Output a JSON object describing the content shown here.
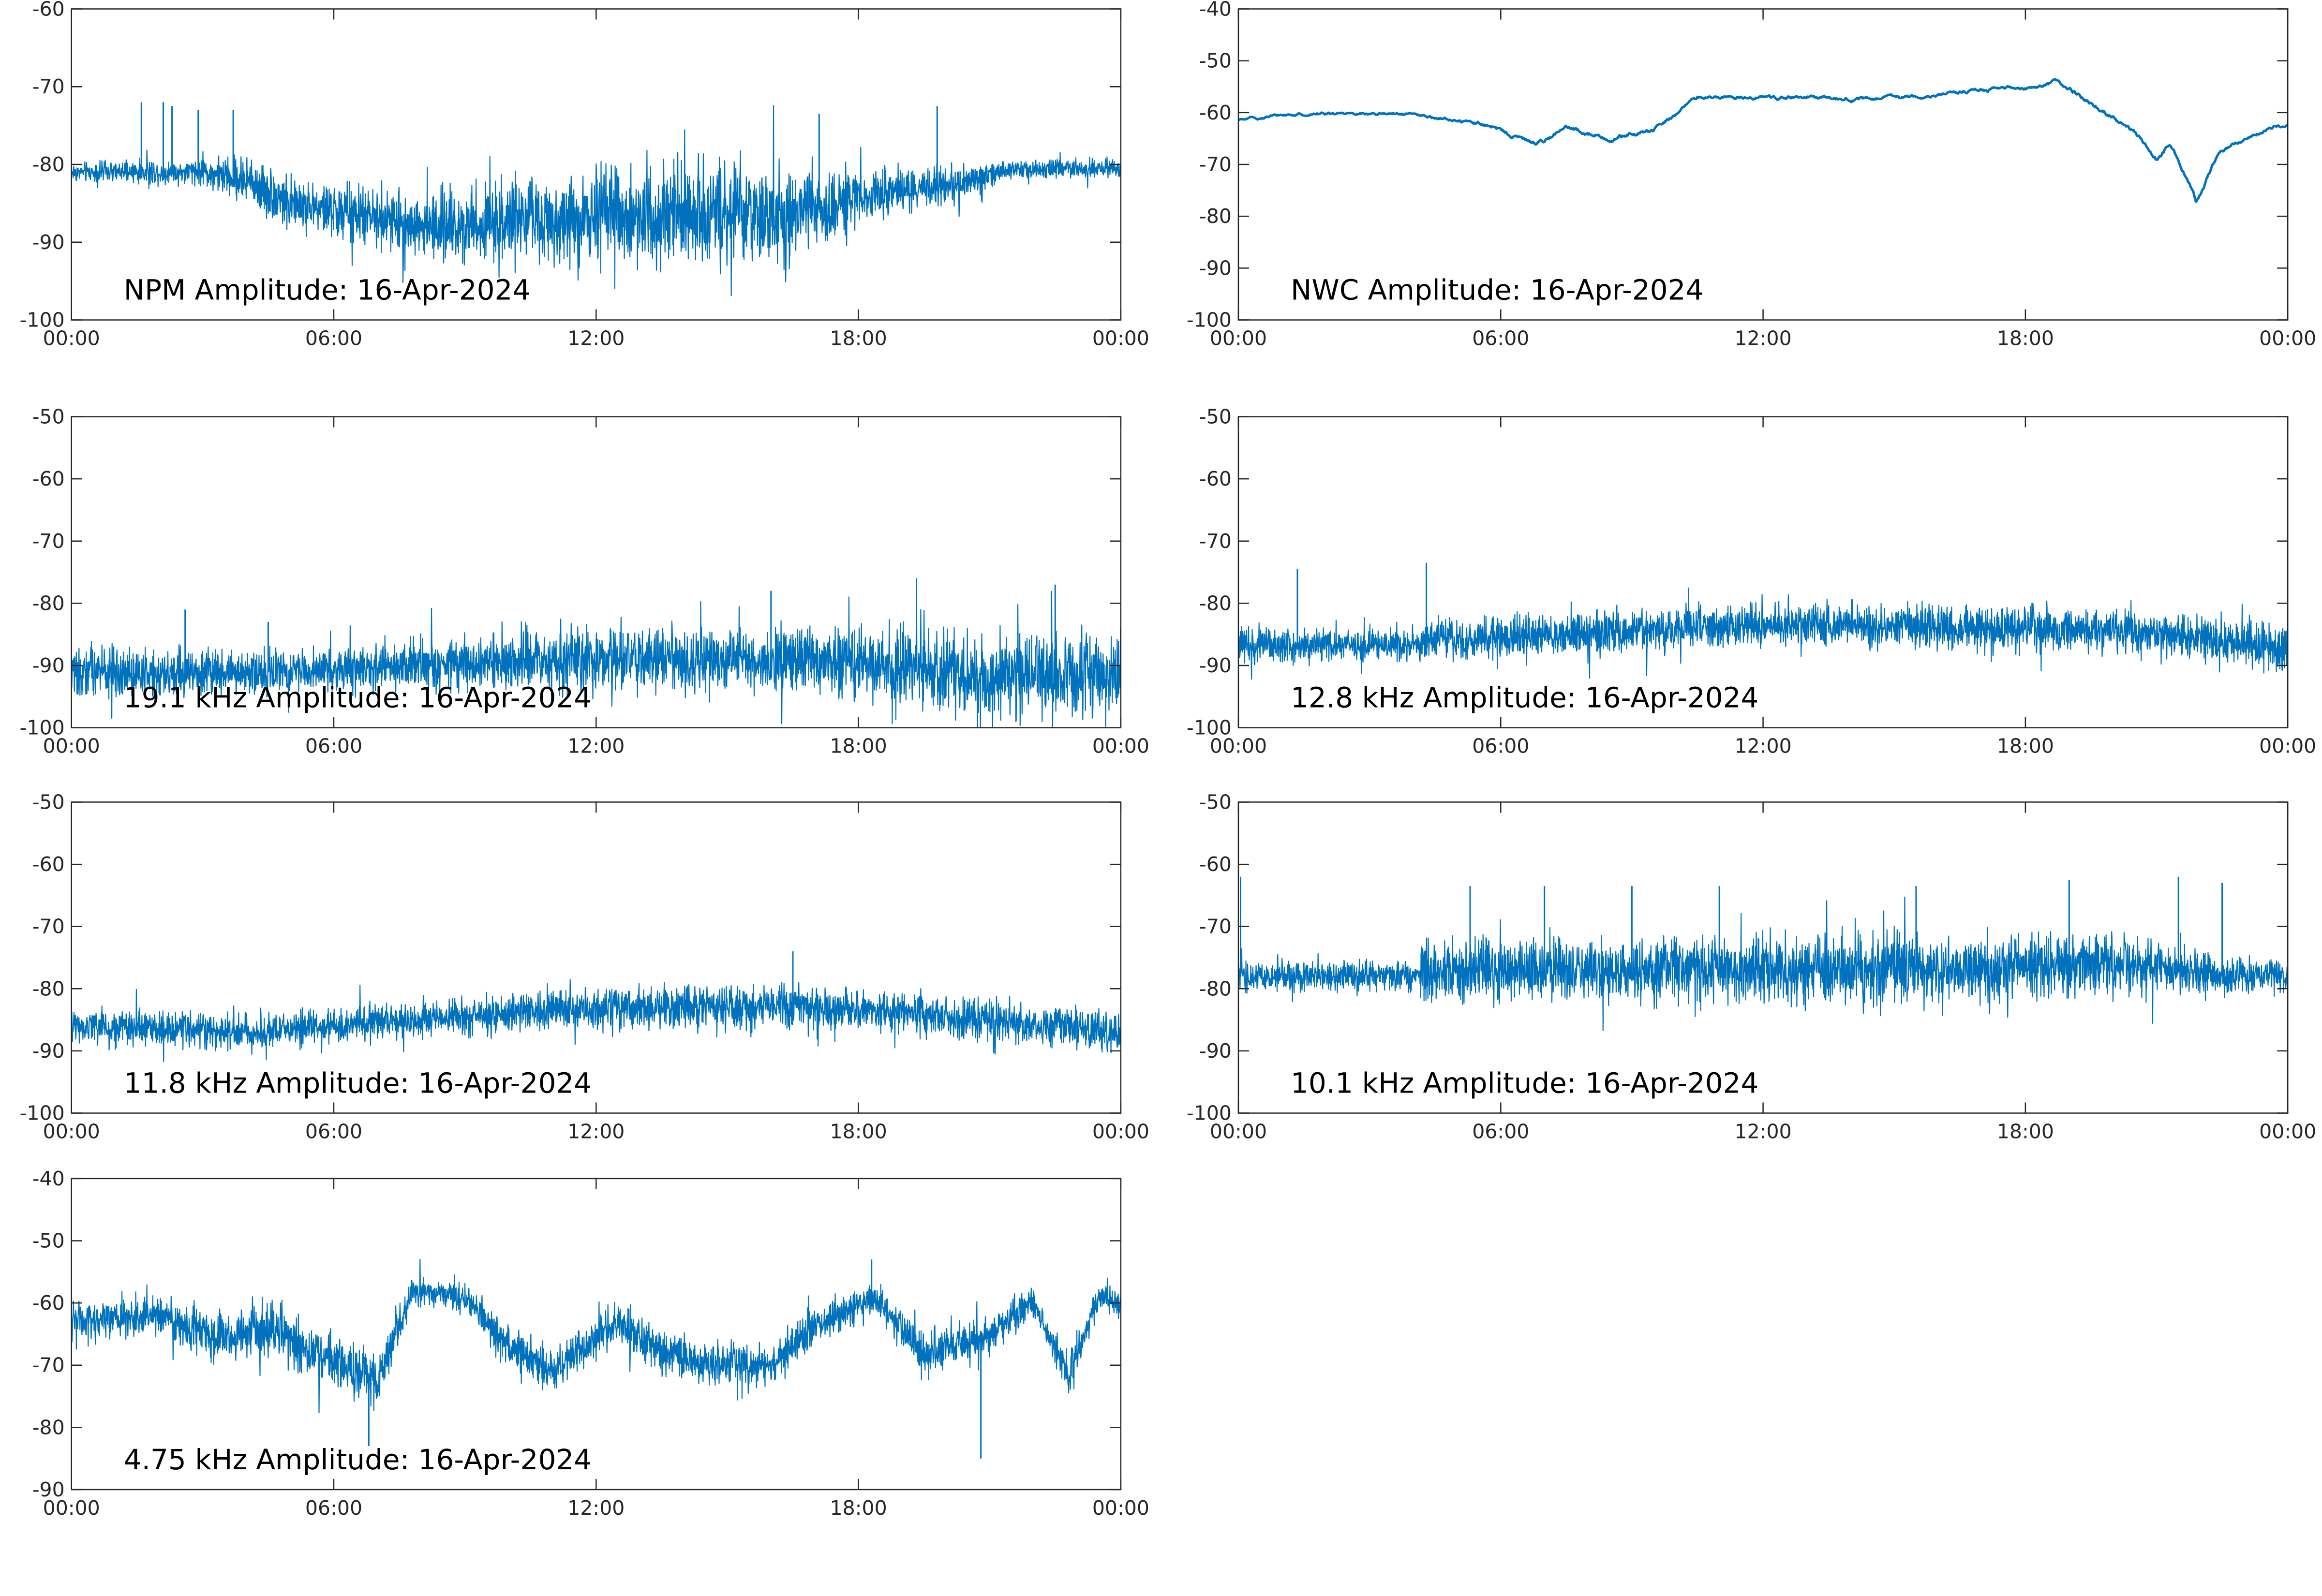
{
  "colors": {
    "series": "#0072BD",
    "axis": "#262626",
    "background": "#ffffff"
  },
  "x_tick_labels": [
    "00:00",
    "06:00",
    "12:00",
    "18:00",
    "00:00"
  ],
  "chart_data": [
    {
      "type": "line",
      "title": "NPM Amplitude: 16-Apr-2024",
      "xlabel": "",
      "ylabel": "",
      "xlim": [
        "00:00",
        "24:00"
      ],
      "ylim": [
        -100,
        -60
      ],
      "yticks": [
        -100,
        -90,
        -80,
        -70,
        -60
      ],
      "grid": false,
      "series": [
        {
          "values": [
            {
              "t": 0,
              "base": -81,
              "noise": 1.5
            },
            {
              "t": 3,
              "base": -81,
              "noise": 2
            },
            {
              "t": 4,
              "base": -82,
              "noise": 4
            },
            {
              "t": 5,
              "base": -85,
              "noise": 4
            },
            {
              "t": 8,
              "base": -88,
              "noise": 5
            },
            {
              "t": 11,
              "base": -87,
              "noise": 7
            },
            {
              "t": 14,
              "base": -86,
              "noise": 8
            },
            {
              "t": 16.5,
              "base": -87,
              "noise": 8
            },
            {
              "t": 18,
              "base": -84,
              "noise": 4
            },
            {
              "t": 20,
              "base": -83,
              "noise": 3
            },
            {
              "t": 21.5,
              "base": -80.5,
              "noise": 1.5
            },
            {
              "t": 24,
              "base": -80.5,
              "noise": 1.5
            }
          ],
          "peaks": [
            [
              1.6,
              -72
            ],
            [
              2.1,
              -72
            ],
            [
              2.3,
              -72.5
            ],
            [
              2.9,
              -73
            ],
            [
              3.7,
              -73
            ],
            [
              17.1,
              -73.5
            ],
            [
              19.8,
              -72.5
            ]
          ]
        }
      ]
    },
    {
      "type": "line",
      "title": "NWC Amplitude: 16-Apr-2024",
      "xlabel": "",
      "ylabel": "",
      "xlim": [
        "00:00",
        "24:00"
      ],
      "ylim": [
        -100,
        -40
      ],
      "yticks": [
        -100,
        -90,
        -80,
        -70,
        -60,
        -50,
        -40
      ],
      "grid": false,
      "series": [
        {
          "values": [
            {
              "t": 0,
              "base": -61.5,
              "noise": 0.3
            },
            {
              "t": 1,
              "base": -60.5,
              "noise": 0.3
            },
            {
              "t": 2.5,
              "base": -60,
              "noise": 0.3
            },
            {
              "t": 4,
              "base": -60.5,
              "noise": 0.3
            },
            {
              "t": 5.5,
              "base": -62,
              "noise": 0.4
            },
            {
              "t": 6.8,
              "base": -66,
              "noise": 0.5
            },
            {
              "t": 7.5,
              "base": -63,
              "noise": 0.5
            },
            {
              "t": 8.5,
              "base": -65,
              "noise": 0.5
            },
            {
              "t": 9.5,
              "base": -63.5,
              "noise": 0.5
            },
            {
              "t": 10.5,
              "base": -57,
              "noise": 0.4
            },
            {
              "t": 12,
              "base": -57,
              "noise": 0.4
            },
            {
              "t": 14.5,
              "base": -57.5,
              "noise": 0.4
            },
            {
              "t": 16.5,
              "base": -56,
              "noise": 0.4
            },
            {
              "t": 18.2,
              "base": -55,
              "noise": 0.4
            },
            {
              "t": 18.7,
              "base": -54,
              "noise": 0.5
            },
            {
              "t": 19.5,
              "base": -58,
              "noise": 0.5
            },
            {
              "t": 20.5,
              "base": -64,
              "noise": 0.5
            },
            {
              "t": 21,
              "base": -69,
              "noise": 0.6
            },
            {
              "t": 21.3,
              "base": -66,
              "noise": 0.5
            },
            {
              "t": 21.9,
              "base": -77,
              "noise": 0.6
            },
            {
              "t": 22.4,
              "base": -68,
              "noise": 0.5
            },
            {
              "t": 23,
              "base": -65,
              "noise": 0.4
            },
            {
              "t": 24,
              "base": -62,
              "noise": 0.4
            }
          ],
          "peaks": []
        }
      ]
    },
    {
      "type": "line",
      "title": "19.1 kHz Amplitude: 16-Apr-2024",
      "xlabel": "",
      "ylabel": "",
      "xlim": [
        "00:00",
        "24:00"
      ],
      "ylim": [
        -100,
        -50
      ],
      "yticks": [
        -100,
        -90,
        -80,
        -70,
        -60,
        -50
      ],
      "grid": false,
      "series": [
        {
          "values": [
            {
              "t": 0,
              "base": -91,
              "noise": 5
            },
            {
              "t": 5,
              "base": -91,
              "noise": 4
            },
            {
              "t": 8,
              "base": -90,
              "noise": 5
            },
            {
              "t": 12,
              "base": -89,
              "noise": 6
            },
            {
              "t": 18,
              "base": -89,
              "noise": 7
            },
            {
              "t": 21,
              "base": -92,
              "noise": 8
            },
            {
              "t": 24,
              "base": -91,
              "noise": 8
            }
          ],
          "peaks": [
            [
              2.6,
              -81
            ],
            [
              4.5,
              -83
            ],
            [
              16,
              -78
            ],
            [
              22.5,
              -77
            ]
          ]
        }
      ]
    },
    {
      "type": "line",
      "title": "12.8 kHz Amplitude: 16-Apr-2024",
      "xlabel": "",
      "ylabel": "",
      "xlim": [
        "00:00",
        "24:00"
      ],
      "ylim": [
        -100,
        -50
      ],
      "yticks": [
        -100,
        -90,
        -80,
        -70,
        -60,
        -50
      ],
      "grid": false,
      "series": [
        {
          "values": [
            {
              "t": 0,
              "base": -86.5,
              "noise": 3.5
            },
            {
              "t": 4.2,
              "base": -87,
              "noise": 3
            },
            {
              "t": 4.4,
              "base": -86,
              "noise": 4
            },
            {
              "t": 8,
              "base": -85,
              "noise": 4
            },
            {
              "t": 12,
              "base": -83.5,
              "noise": 4
            },
            {
              "t": 18,
              "base": -84,
              "noise": 4.5
            },
            {
              "t": 21,
              "base": -85,
              "noise": 4.5
            },
            {
              "t": 24,
              "base": -87,
              "noise": 4.5
            }
          ],
          "peaks": [
            [
              1.35,
              -74.5
            ],
            [
              4.3,
              -73.5
            ]
          ]
        }
      ]
    },
    {
      "type": "line",
      "title": "11.8 kHz Amplitude: 16-Apr-2024",
      "xlabel": "",
      "ylabel": "",
      "xlim": [
        "00:00",
        "24:00"
      ],
      "ylim": [
        -100,
        -50
      ],
      "yticks": [
        -100,
        -90,
        -80,
        -70,
        -60,
        -50
      ],
      "grid": false,
      "series": [
        {
          "values": [
            {
              "t": 0,
              "base": -86,
              "noise": 3.5
            },
            {
              "t": 4,
              "base": -87,
              "noise": 3.5
            },
            {
              "t": 8,
              "base": -85,
              "noise": 3.5
            },
            {
              "t": 12,
              "base": -83,
              "noise": 4
            },
            {
              "t": 17,
              "base": -83,
              "noise": 4
            },
            {
              "t": 21,
              "base": -85,
              "noise": 4
            },
            {
              "t": 24,
              "base": -87,
              "noise": 4
            }
          ],
          "peaks": [
            [
              16.5,
              -74
            ]
          ]
        }
      ]
    },
    {
      "type": "line",
      "title": "10.1 kHz Amplitude: 16-Apr-2024",
      "xlabel": "",
      "ylabel": "",
      "xlim": [
        "00:00",
        "24:00"
      ],
      "ylim": [
        -100,
        -50
      ],
      "yticks": [
        -100,
        -90,
        -80,
        -70,
        -60,
        -50
      ],
      "grid": false,
      "series": [
        {
          "values": [
            {
              "t": 0,
              "base": -78,
              "noise": 3
            },
            {
              "t": 4,
              "base": -78,
              "noise": 3
            },
            {
              "t": 4.2,
              "base": -77,
              "noise": 6
            },
            {
              "t": 8,
              "base": -77,
              "noise": 6
            },
            {
              "t": 14,
              "base": -77,
              "noise": 7
            },
            {
              "t": 16,
              "base": -77,
              "noise": 6
            },
            {
              "t": 20,
              "base": -76,
              "noise": 6
            },
            {
              "t": 22.5,
              "base": -78,
              "noise": 4
            },
            {
              "t": 24,
              "base": -78,
              "noise": 3
            }
          ],
          "peaks": [
            [
              0.05,
              -62
            ],
            [
              5.3,
              -63.5
            ],
            [
              7,
              -63.5
            ],
            [
              9,
              -63.5
            ],
            [
              11,
              -63.5
            ],
            [
              15.5,
              -63.5
            ],
            [
              19,
              -62.5
            ],
            [
              21.5,
              -62
            ],
            [
              22.5,
              -63
            ]
          ]
        }
      ]
    },
    {
      "type": "line",
      "title": "4.75 kHz Amplitude: 16-Apr-2024",
      "xlabel": "",
      "ylabel": "",
      "xlim": [
        "00:00",
        "24:00"
      ],
      "ylim": [
        -90,
        -40
      ],
      "yticks": [
        -90,
        -80,
        -70,
        -60,
        -50,
        -40
      ],
      "grid": false,
      "series": [
        {
          "values": [
            {
              "t": 0,
              "base": -63,
              "noise": 4
            },
            {
              "t": 2,
              "base": -62,
              "noise": 4
            },
            {
              "t": 3.5,
              "base": -66,
              "noise": 5
            },
            {
              "t": 4.5,
              "base": -64,
              "noise": 5
            },
            {
              "t": 5.5,
              "base": -68,
              "noise": 5
            },
            {
              "t": 7,
              "base": -73,
              "noise": 5
            },
            {
              "t": 7.8,
              "base": -58,
              "noise": 3
            },
            {
              "t": 9,
              "base": -59,
              "noise": 3
            },
            {
              "t": 10,
              "base": -67,
              "noise": 4
            },
            {
              "t": 11,
              "base": -71,
              "noise": 4
            },
            {
              "t": 12.5,
              "base": -63,
              "noise": 4
            },
            {
              "t": 13.5,
              "base": -68,
              "noise": 4
            },
            {
              "t": 14.5,
              "base": -70,
              "noise": 4
            },
            {
              "t": 16,
              "base": -70,
              "noise": 4
            },
            {
              "t": 17,
              "base": -64,
              "noise": 4
            },
            {
              "t": 18.3,
              "base": -59,
              "noise": 3
            },
            {
              "t": 19.5,
              "base": -68,
              "noise": 4
            },
            {
              "t": 21,
              "base": -65,
              "noise": 4
            },
            {
              "t": 22,
              "base": -60,
              "noise": 3
            },
            {
              "t": 22.8,
              "base": -72,
              "noise": 4
            },
            {
              "t": 23.5,
              "base": -59,
              "noise": 3
            },
            {
              "t": 24,
              "base": -60,
              "noise": 3
            }
          ],
          "peaks": [
            [
              6.8,
              -83
            ],
            [
              18.3,
              -53
            ],
            [
              20.8,
              -85
            ]
          ]
        }
      ]
    }
  ]
}
